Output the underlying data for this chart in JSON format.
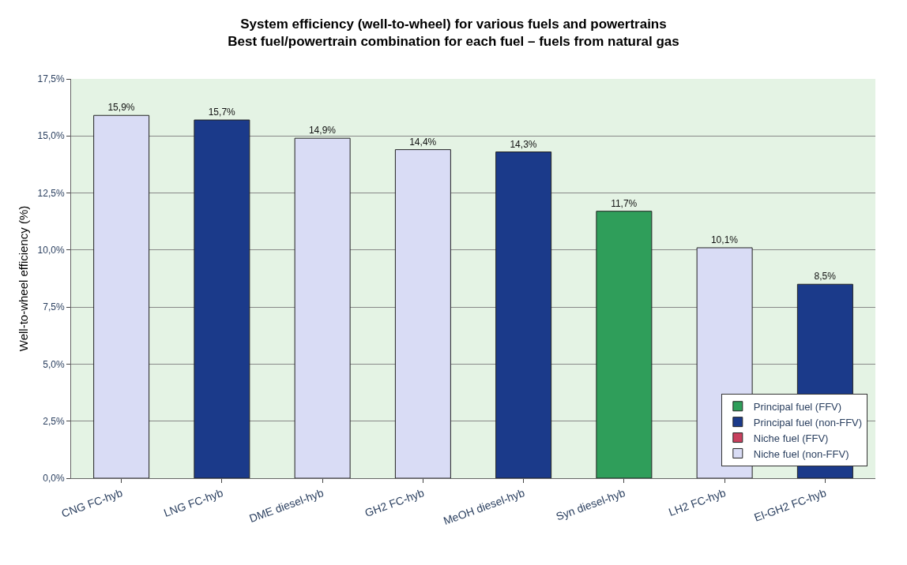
{
  "chart_data": {
    "type": "bar",
    "title": "System efficiency (well-to-wheel) for various fuels and powertrains\nBest fuel/powertrain combination for each fuel – fuels from natural gas",
    "ylabel": "Well-to-wheel efficiency (%)",
    "categories": [
      "CNG FC-hyb",
      "LNG FC-hyb",
      "DME diesel-hyb",
      "GH2 FC-hyb",
      "MeOH diesel-hyb",
      "Syn diesel-hyb",
      "LH2 FC-hyb",
      "El-GH2 FC-hyb"
    ],
    "series": [
      {
        "name": "Principal fuel (FFV)",
        "color": "#2f9e5a",
        "values": [
          null,
          null,
          null,
          null,
          null,
          11.7,
          null,
          null
        ],
        "value_labels": [
          null,
          null,
          null,
          null,
          null,
          "11,7%",
          null,
          null
        ]
      },
      {
        "name": "Principal fuel (non-FFV)",
        "color": "#1b3a8a",
        "values": [
          null,
          15.7,
          null,
          null,
          14.3,
          null,
          null,
          8.5
        ],
        "value_labels": [
          null,
          "15,7%",
          null,
          null,
          "14,3%",
          null,
          null,
          "8,5%"
        ]
      },
      {
        "name": "Niche fuel (FFV)",
        "color": "#c8405e",
        "values": [
          null,
          null,
          null,
          null,
          null,
          null,
          null,
          null
        ]
      },
      {
        "name": "Niche fuel (non-FFV)",
        "color": "#d9dcf5",
        "values": [
          15.9,
          null,
          14.9,
          14.4,
          null,
          null,
          10.1,
          null
        ],
        "value_labels": [
          "15,9%",
          null,
          "14,9%",
          "14,4%",
          null,
          null,
          "10,1%",
          null
        ]
      }
    ],
    "ylim": [
      0,
      17.5
    ],
    "yticks": [
      {
        "value": 0,
        "label": "0,0%"
      },
      {
        "value": 2.5,
        "label": "2,5%"
      },
      {
        "value": 5,
        "label": "5,0%"
      },
      {
        "value": 7.5,
        "label": "7,5%"
      },
      {
        "value": 10,
        "label": "10,0%"
      },
      {
        "value": 12.5,
        "label": "12,5%"
      },
      {
        "value": 15,
        "label": "15,0%"
      },
      {
        "value": 17.5,
        "label": "17,5%"
      }
    ],
    "grid": "y",
    "legend": "bottom right"
  }
}
